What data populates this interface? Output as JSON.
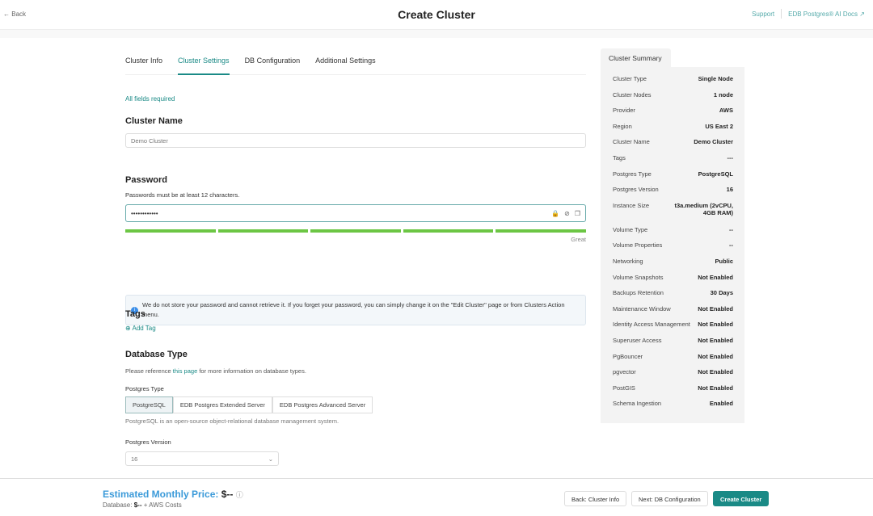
{
  "header": {
    "back": "Back",
    "title": "Create Cluster",
    "support": "Support",
    "docs": "EDB Postgres® AI Docs"
  },
  "tabs": [
    {
      "label": "Cluster Info"
    },
    {
      "label": "Cluster Settings",
      "active": true
    },
    {
      "label": "DB Configuration"
    },
    {
      "label": "Additional Settings"
    }
  ],
  "form": {
    "required_note": "All fields required",
    "cluster_name": {
      "label": "Cluster Name",
      "value": "Demo Cluster"
    },
    "password": {
      "label": "Password",
      "hint": "Passwords must be at least 12 characters.",
      "value": "••••••••••••",
      "strength_label": "Great",
      "strength_percent": 100
    },
    "info": "We do not store your password and cannot retrieve it. If you forget your password, you can simply change it on the \"Edit Cluster\" page or from Clusters Action menu.",
    "tags": {
      "label": "Tags",
      "add": "Add Tag"
    },
    "database_type": {
      "label": "Database Type",
      "ref_prefix": "Please reference ",
      "ref_link": "this page",
      "ref_suffix": " for more information on database types.",
      "postgres_type_label": "Postgres Type",
      "options": [
        "PostgreSQL",
        "EDB Postgres Extended Server",
        "EDB Postgres Advanced Server"
      ],
      "selected": "PostgreSQL",
      "description": "PostgreSQL is an open-source object-relational database management system.",
      "version_label": "Postgres Version",
      "version": "16"
    }
  },
  "summary": {
    "title": "Cluster Summary",
    "rows": [
      [
        "Cluster Type",
        "Single Node"
      ],
      [
        "Cluster Nodes",
        "1 node"
      ],
      [
        "Provider",
        "AWS"
      ],
      [
        "Region",
        "US East 2"
      ],
      [
        "Cluster Name",
        "Demo Cluster"
      ],
      [
        "Tags",
        "---"
      ],
      [
        "Postgres Type",
        "PostgreSQL"
      ],
      [
        "Postgres Version",
        "16"
      ],
      [
        "Instance Size",
        "t3a.medium (2vCPU, 4GB RAM)"
      ],
      [
        "Volume Type",
        "--"
      ],
      [
        "Volume Properties",
        "--"
      ],
      [
        "Networking",
        "Public"
      ],
      [
        "Volume Snapshots",
        "Not Enabled"
      ],
      [
        "Backups Retention",
        "30 Days"
      ],
      [
        "Maintenance Window",
        "Not Enabled"
      ],
      [
        "Identity Access Management",
        "Not Enabled"
      ],
      [
        "Superuser Access",
        "Not Enabled"
      ],
      [
        "PgBouncer",
        "Not Enabled"
      ],
      [
        "pgvector",
        "Not Enabled"
      ],
      [
        "PostGIS",
        "Not Enabled"
      ],
      [
        "Schema Ingestion",
        "Enabled"
      ]
    ]
  },
  "footer": {
    "price_label": "Estimated Monthly Price:",
    "price_value": "$--",
    "sub_prefix": "Database: ",
    "sub_value": "$--",
    "sub_suffix": " + AWS Costs",
    "back": "Back: Cluster Info",
    "next": "Next: DB Configuration",
    "create": "Create Cluster"
  },
  "colors": {
    "accent": "#1a8a86",
    "strength": "#6cc644",
    "price": "#3b9ad9"
  }
}
